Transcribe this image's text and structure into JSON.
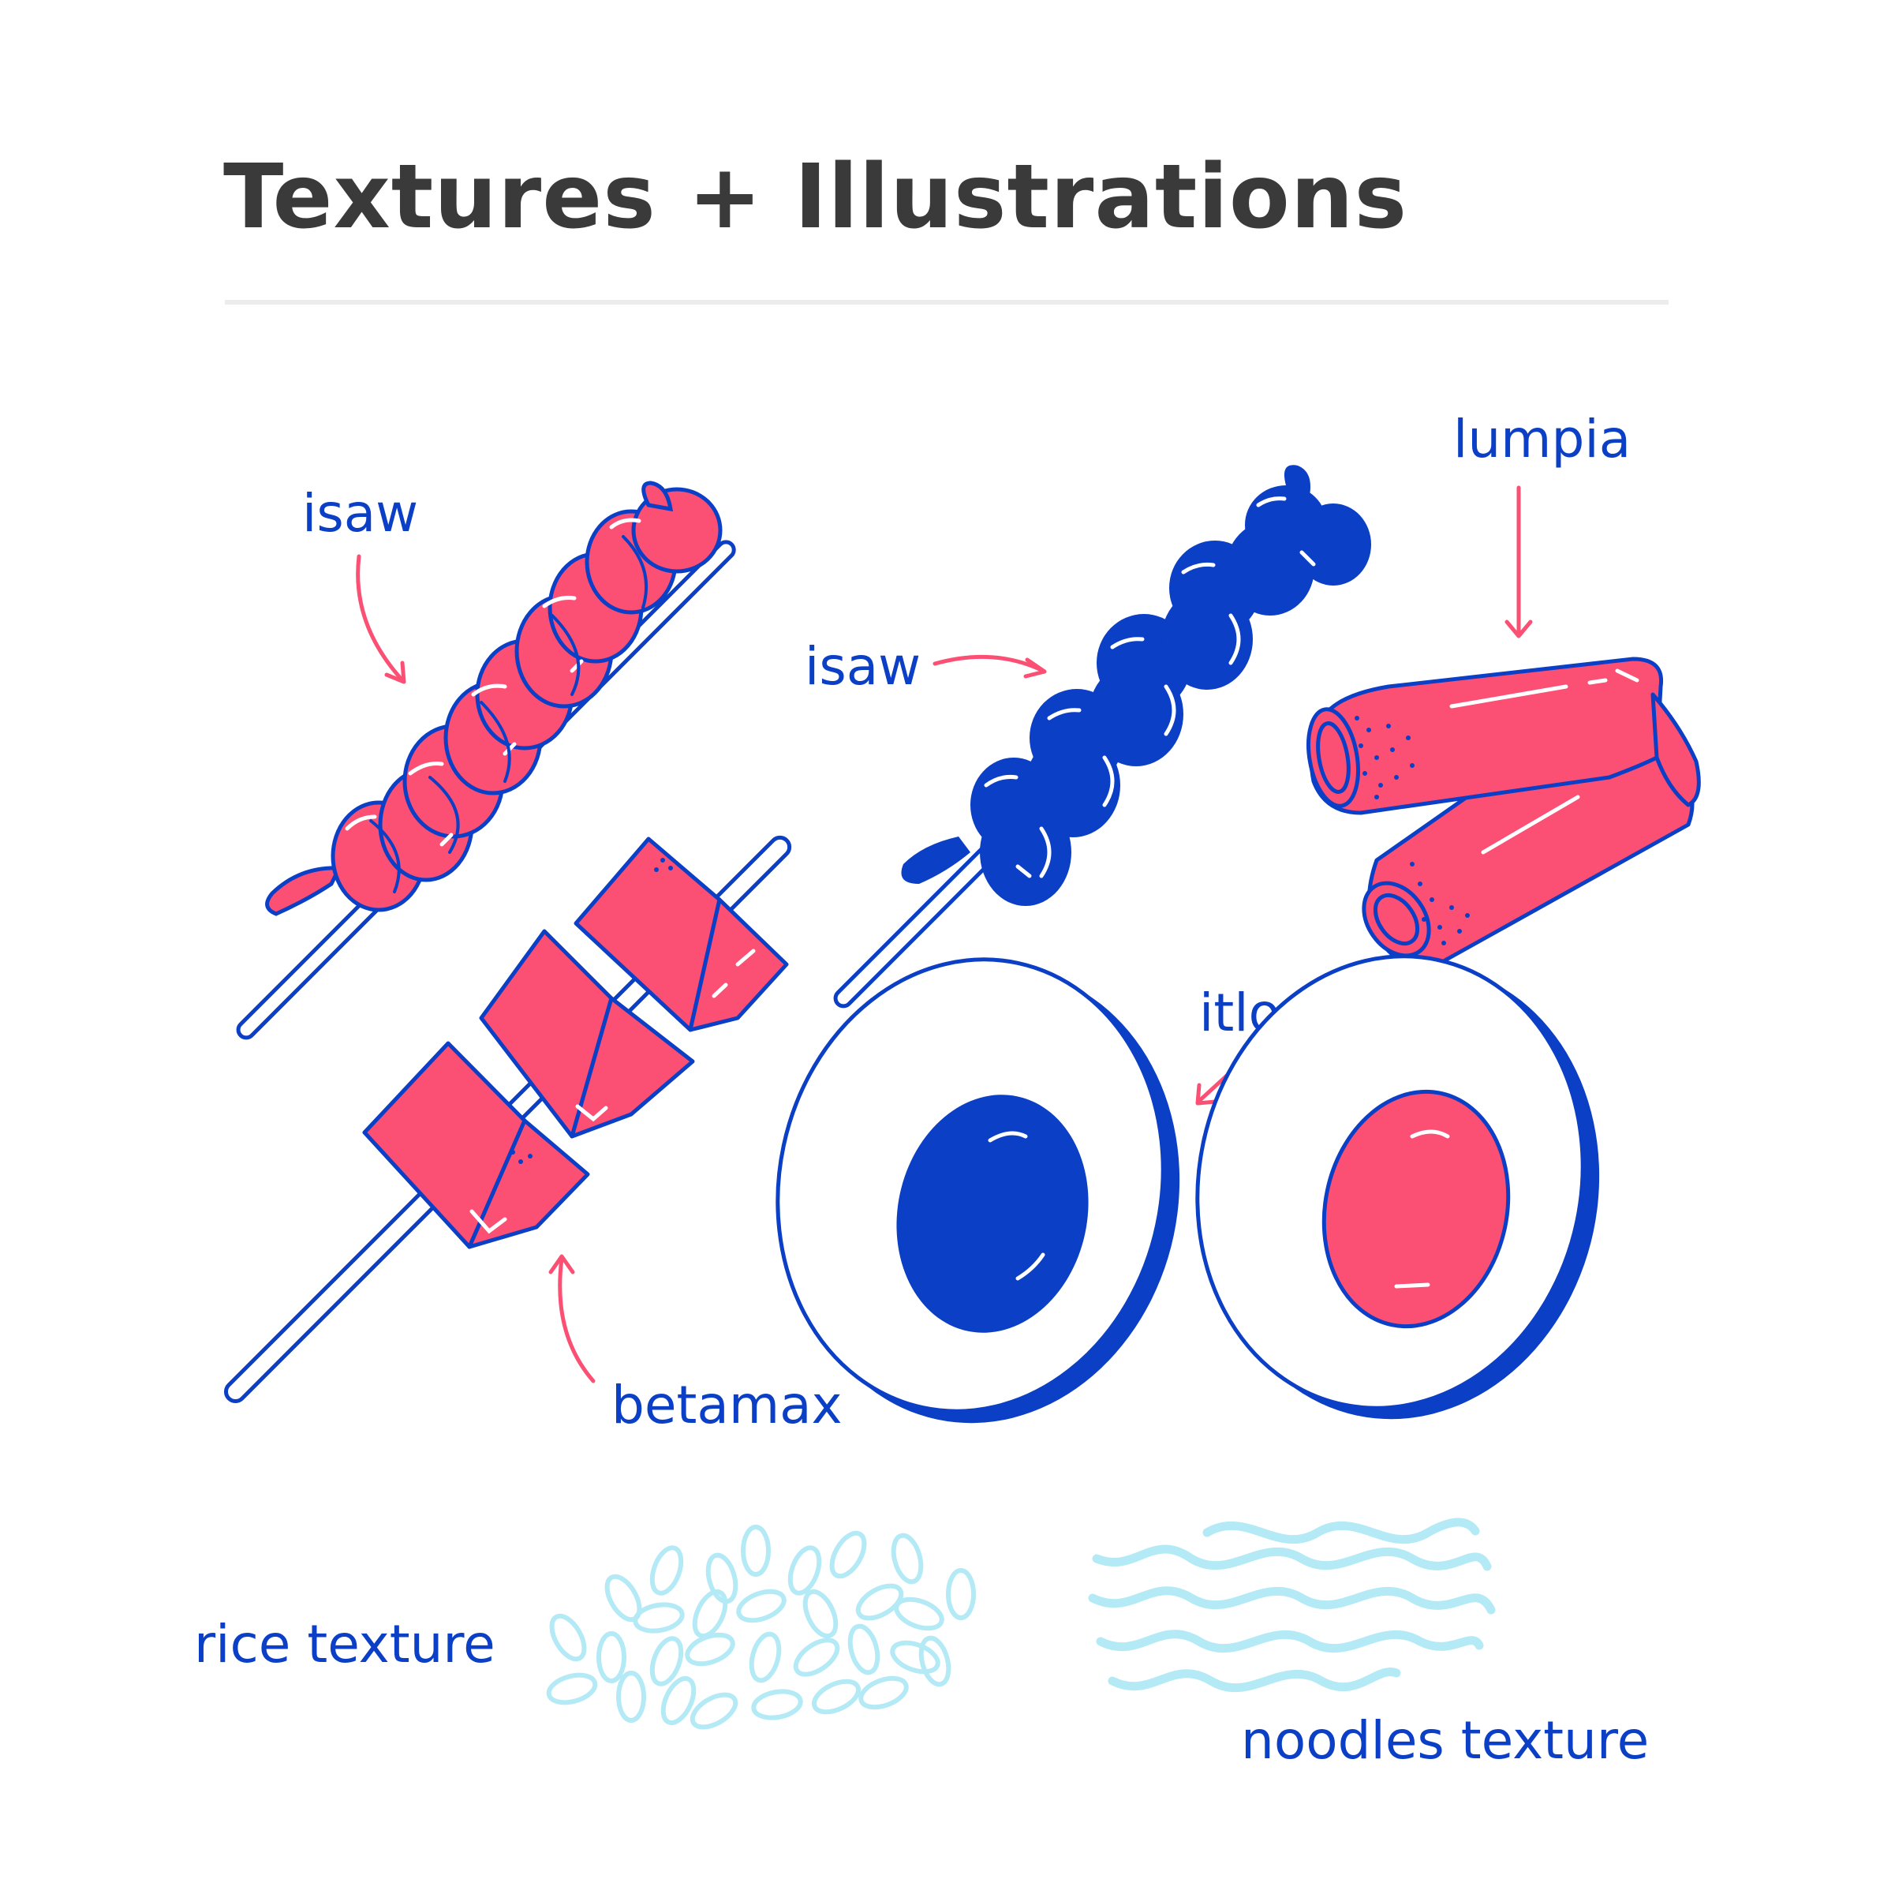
{
  "title": "Textures + Illustrations",
  "labels": {
    "isaw_left": "isaw",
    "isaw_right": "isaw",
    "lumpia": "lumpia",
    "itlog": "itlog",
    "betamax": "betamax",
    "rice": "rice texture",
    "noodles": "noodles texture"
  },
  "colors": {
    "pink": "#fb4f74",
    "blue": "#0a3fc6",
    "light_blue": "#b3eaf6",
    "title": "#3a3a3a",
    "rule": "#ececec"
  },
  "icons": [
    "isaw-skewer-pink",
    "betamax-skewer",
    "isaw-skewer-blue",
    "lumpia",
    "itlog-blue",
    "itlog-pink",
    "rice-texture",
    "noodles-texture",
    "pink-arrow"
  ]
}
